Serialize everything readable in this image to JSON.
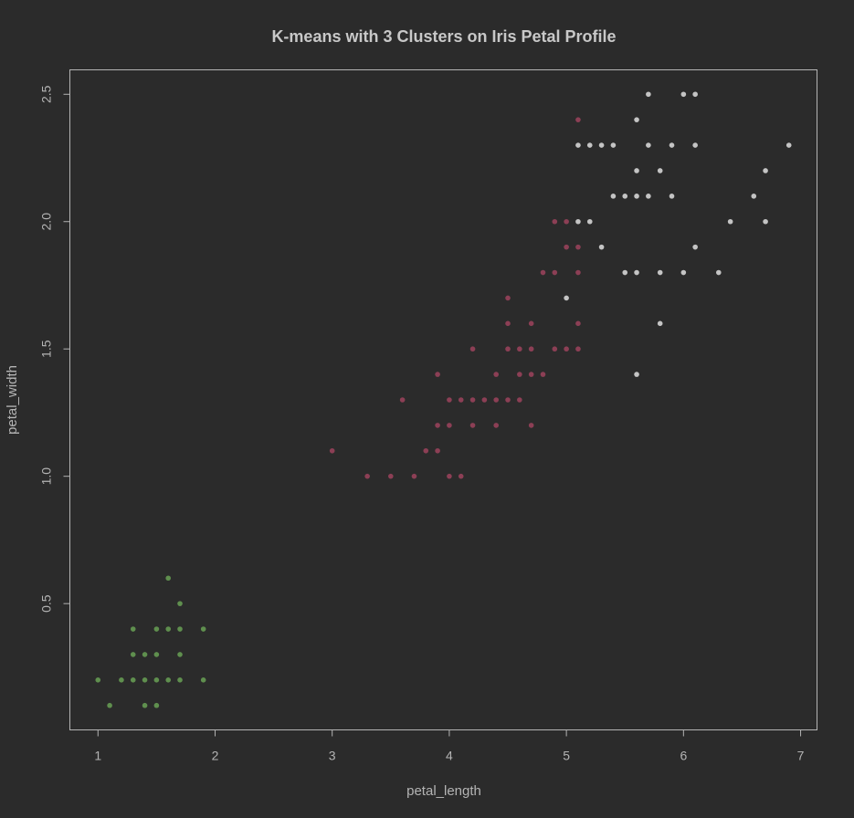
{
  "chart_data": {
    "type": "scatter",
    "title": "K-means with 3 Clusters on Iris Petal Profile",
    "xlabel": "petal_length",
    "ylabel": "petal_width",
    "xlim": [
      0.76,
      7.14
    ],
    "ylim": [
      0.004,
      2.596
    ],
    "xticks": [
      1,
      2,
      3,
      4,
      5,
      6,
      7
    ],
    "yticks": [
      0.5,
      1.0,
      1.5,
      2.0,
      2.5
    ],
    "ytick_labels": [
      "0.5",
      "1.0",
      "1.5",
      "2.0",
      "2.5"
    ],
    "grid": false,
    "legend": "none",
    "background": "#2b2b2b",
    "series": [
      {
        "color": "#5f8f4e",
        "points": [
          [
            1.0,
            0.2
          ],
          [
            1.1,
            0.1
          ],
          [
            1.2,
            0.2
          ],
          [
            1.3,
            0.2
          ],
          [
            1.3,
            0.3
          ],
          [
            1.3,
            0.4
          ],
          [
            1.4,
            0.1
          ],
          [
            1.4,
            0.2
          ],
          [
            1.4,
            0.3
          ],
          [
            1.5,
            0.1
          ],
          [
            1.5,
            0.2
          ],
          [
            1.5,
            0.3
          ],
          [
            1.5,
            0.4
          ],
          [
            1.6,
            0.2
          ],
          [
            1.6,
            0.4
          ],
          [
            1.6,
            0.6
          ],
          [
            1.7,
            0.2
          ],
          [
            1.7,
            0.3
          ],
          [
            1.7,
            0.4
          ],
          [
            1.7,
            0.5
          ],
          [
            1.9,
            0.2
          ],
          [
            1.9,
            0.4
          ]
        ]
      },
      {
        "color": "#8c3f55",
        "points": [
          [
            3.0,
            1.1
          ],
          [
            3.3,
            1.0
          ],
          [
            3.5,
            1.0
          ],
          [
            3.6,
            1.3
          ],
          [
            3.7,
            1.0
          ],
          [
            3.8,
            1.1
          ],
          [
            3.9,
            1.1
          ],
          [
            3.9,
            1.2
          ],
          [
            3.9,
            1.4
          ],
          [
            4.0,
            1.0
          ],
          [
            4.0,
            1.2
          ],
          [
            4.0,
            1.3
          ],
          [
            4.1,
            1.0
          ],
          [
            4.1,
            1.3
          ],
          [
            4.2,
            1.2
          ],
          [
            4.2,
            1.3
          ],
          [
            4.2,
            1.5
          ],
          [
            4.3,
            1.3
          ],
          [
            4.4,
            1.2
          ],
          [
            4.4,
            1.3
          ],
          [
            4.4,
            1.4
          ],
          [
            4.5,
            1.3
          ],
          [
            4.5,
            1.5
          ],
          [
            4.5,
            1.6
          ],
          [
            4.5,
            1.7
          ],
          [
            4.6,
            1.3
          ],
          [
            4.6,
            1.4
          ],
          [
            4.6,
            1.5
          ],
          [
            4.7,
            1.2
          ],
          [
            4.7,
            1.4
          ],
          [
            4.7,
            1.5
          ],
          [
            4.7,
            1.6
          ],
          [
            4.8,
            1.4
          ],
          [
            4.8,
            1.8
          ],
          [
            4.9,
            1.5
          ],
          [
            4.9,
            1.8
          ],
          [
            4.9,
            2.0
          ],
          [
            5.0,
            1.5
          ],
          [
            5.0,
            1.9
          ],
          [
            5.0,
            2.0
          ],
          [
            5.1,
            1.5
          ],
          [
            5.1,
            1.6
          ],
          [
            5.1,
            1.8
          ],
          [
            5.1,
            1.9
          ],
          [
            5.1,
            2.4
          ]
        ]
      },
      {
        "color": "#c4c4c4",
        "points": [
          [
            5.0,
            1.7
          ],
          [
            5.1,
            2.0
          ],
          [
            5.1,
            2.3
          ],
          [
            5.2,
            2.0
          ],
          [
            5.2,
            2.3
          ],
          [
            5.3,
            1.9
          ],
          [
            5.3,
            2.3
          ],
          [
            5.4,
            2.1
          ],
          [
            5.4,
            2.3
          ],
          [
            5.5,
            1.8
          ],
          [
            5.5,
            2.1
          ],
          [
            5.6,
            1.4
          ],
          [
            5.6,
            1.8
          ],
          [
            5.6,
            2.1
          ],
          [
            5.6,
            2.2
          ],
          [
            5.6,
            2.4
          ],
          [
            5.7,
            2.1
          ],
          [
            5.7,
            2.3
          ],
          [
            5.7,
            2.5
          ],
          [
            5.8,
            1.6
          ],
          [
            5.8,
            1.8
          ],
          [
            5.8,
            2.2
          ],
          [
            5.9,
            2.1
          ],
          [
            5.9,
            2.3
          ],
          [
            6.0,
            1.8
          ],
          [
            6.0,
            2.5
          ],
          [
            6.1,
            1.9
          ],
          [
            6.1,
            2.3
          ],
          [
            6.1,
            2.5
          ],
          [
            6.3,
            1.8
          ],
          [
            6.4,
            2.0
          ],
          [
            6.6,
            2.1
          ],
          [
            6.7,
            2.0
          ],
          [
            6.7,
            2.2
          ],
          [
            6.9,
            2.3
          ]
        ]
      }
    ]
  }
}
